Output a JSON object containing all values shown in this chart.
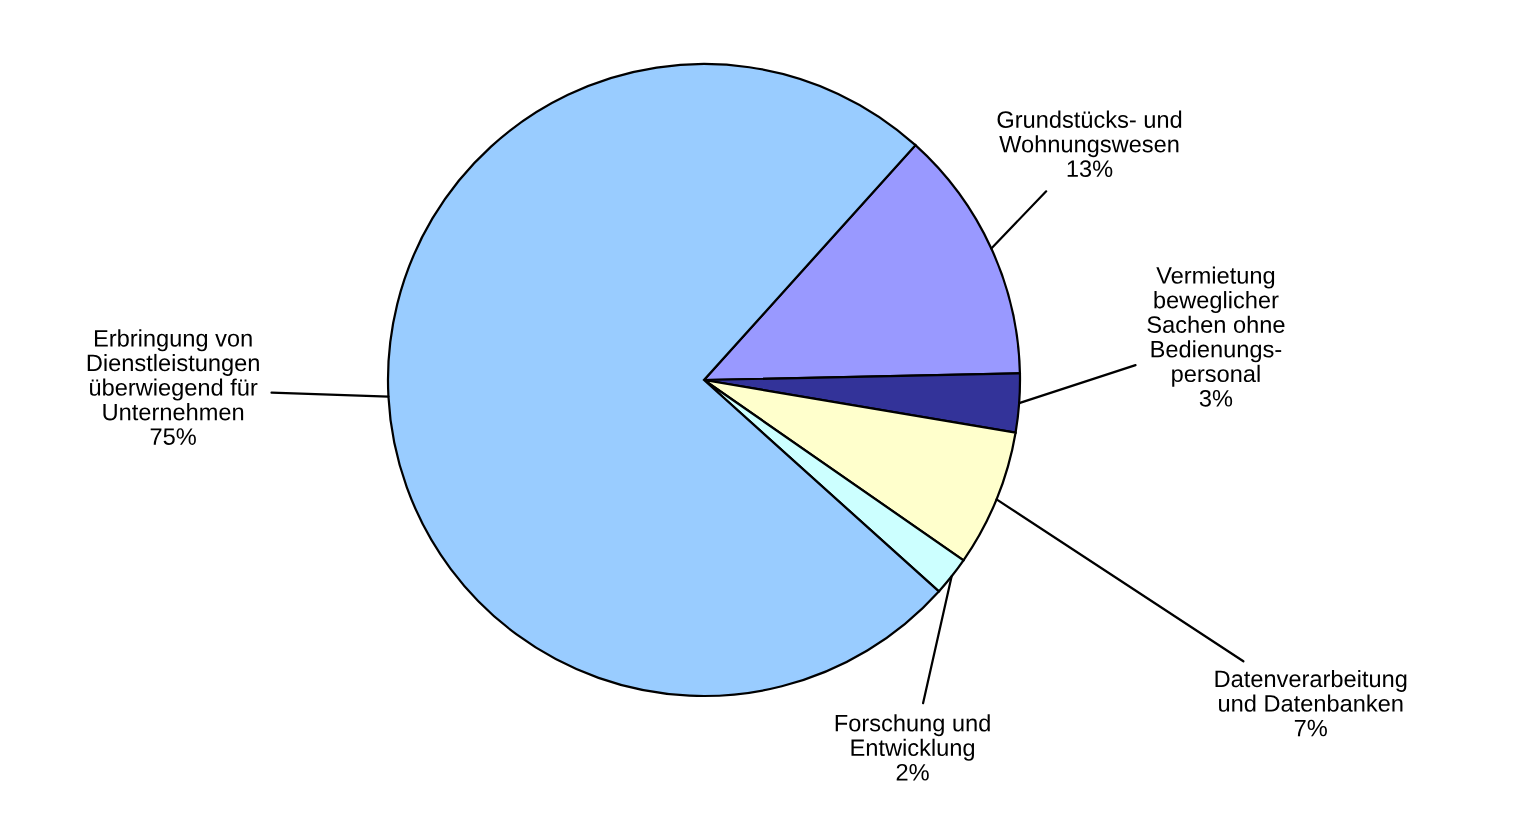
{
  "chart_data": {
    "type": "pie",
    "categories": [
      "Grundstücks- und\nWohnungswesen",
      "Vermietung\nbeweglicher\nSachen ohne\nBedienungs-\npersonal",
      "Datenverarbeitung\nund Datenbanken",
      "Forschung und\nEntwicklung",
      "Erbringung von\nDienstleistungen\nüberwiegend für\nUnternehmen"
    ],
    "values": [
      13,
      3,
      7,
      2,
      75
    ],
    "value_labels": [
      "13%",
      "3%",
      "7%",
      "2%",
      "75%"
    ],
    "colors": [
      "#9999ff",
      "#333399",
      "#ffffcc",
      "#ccffff",
      "#99ccff"
    ],
    "legend": false
  }
}
